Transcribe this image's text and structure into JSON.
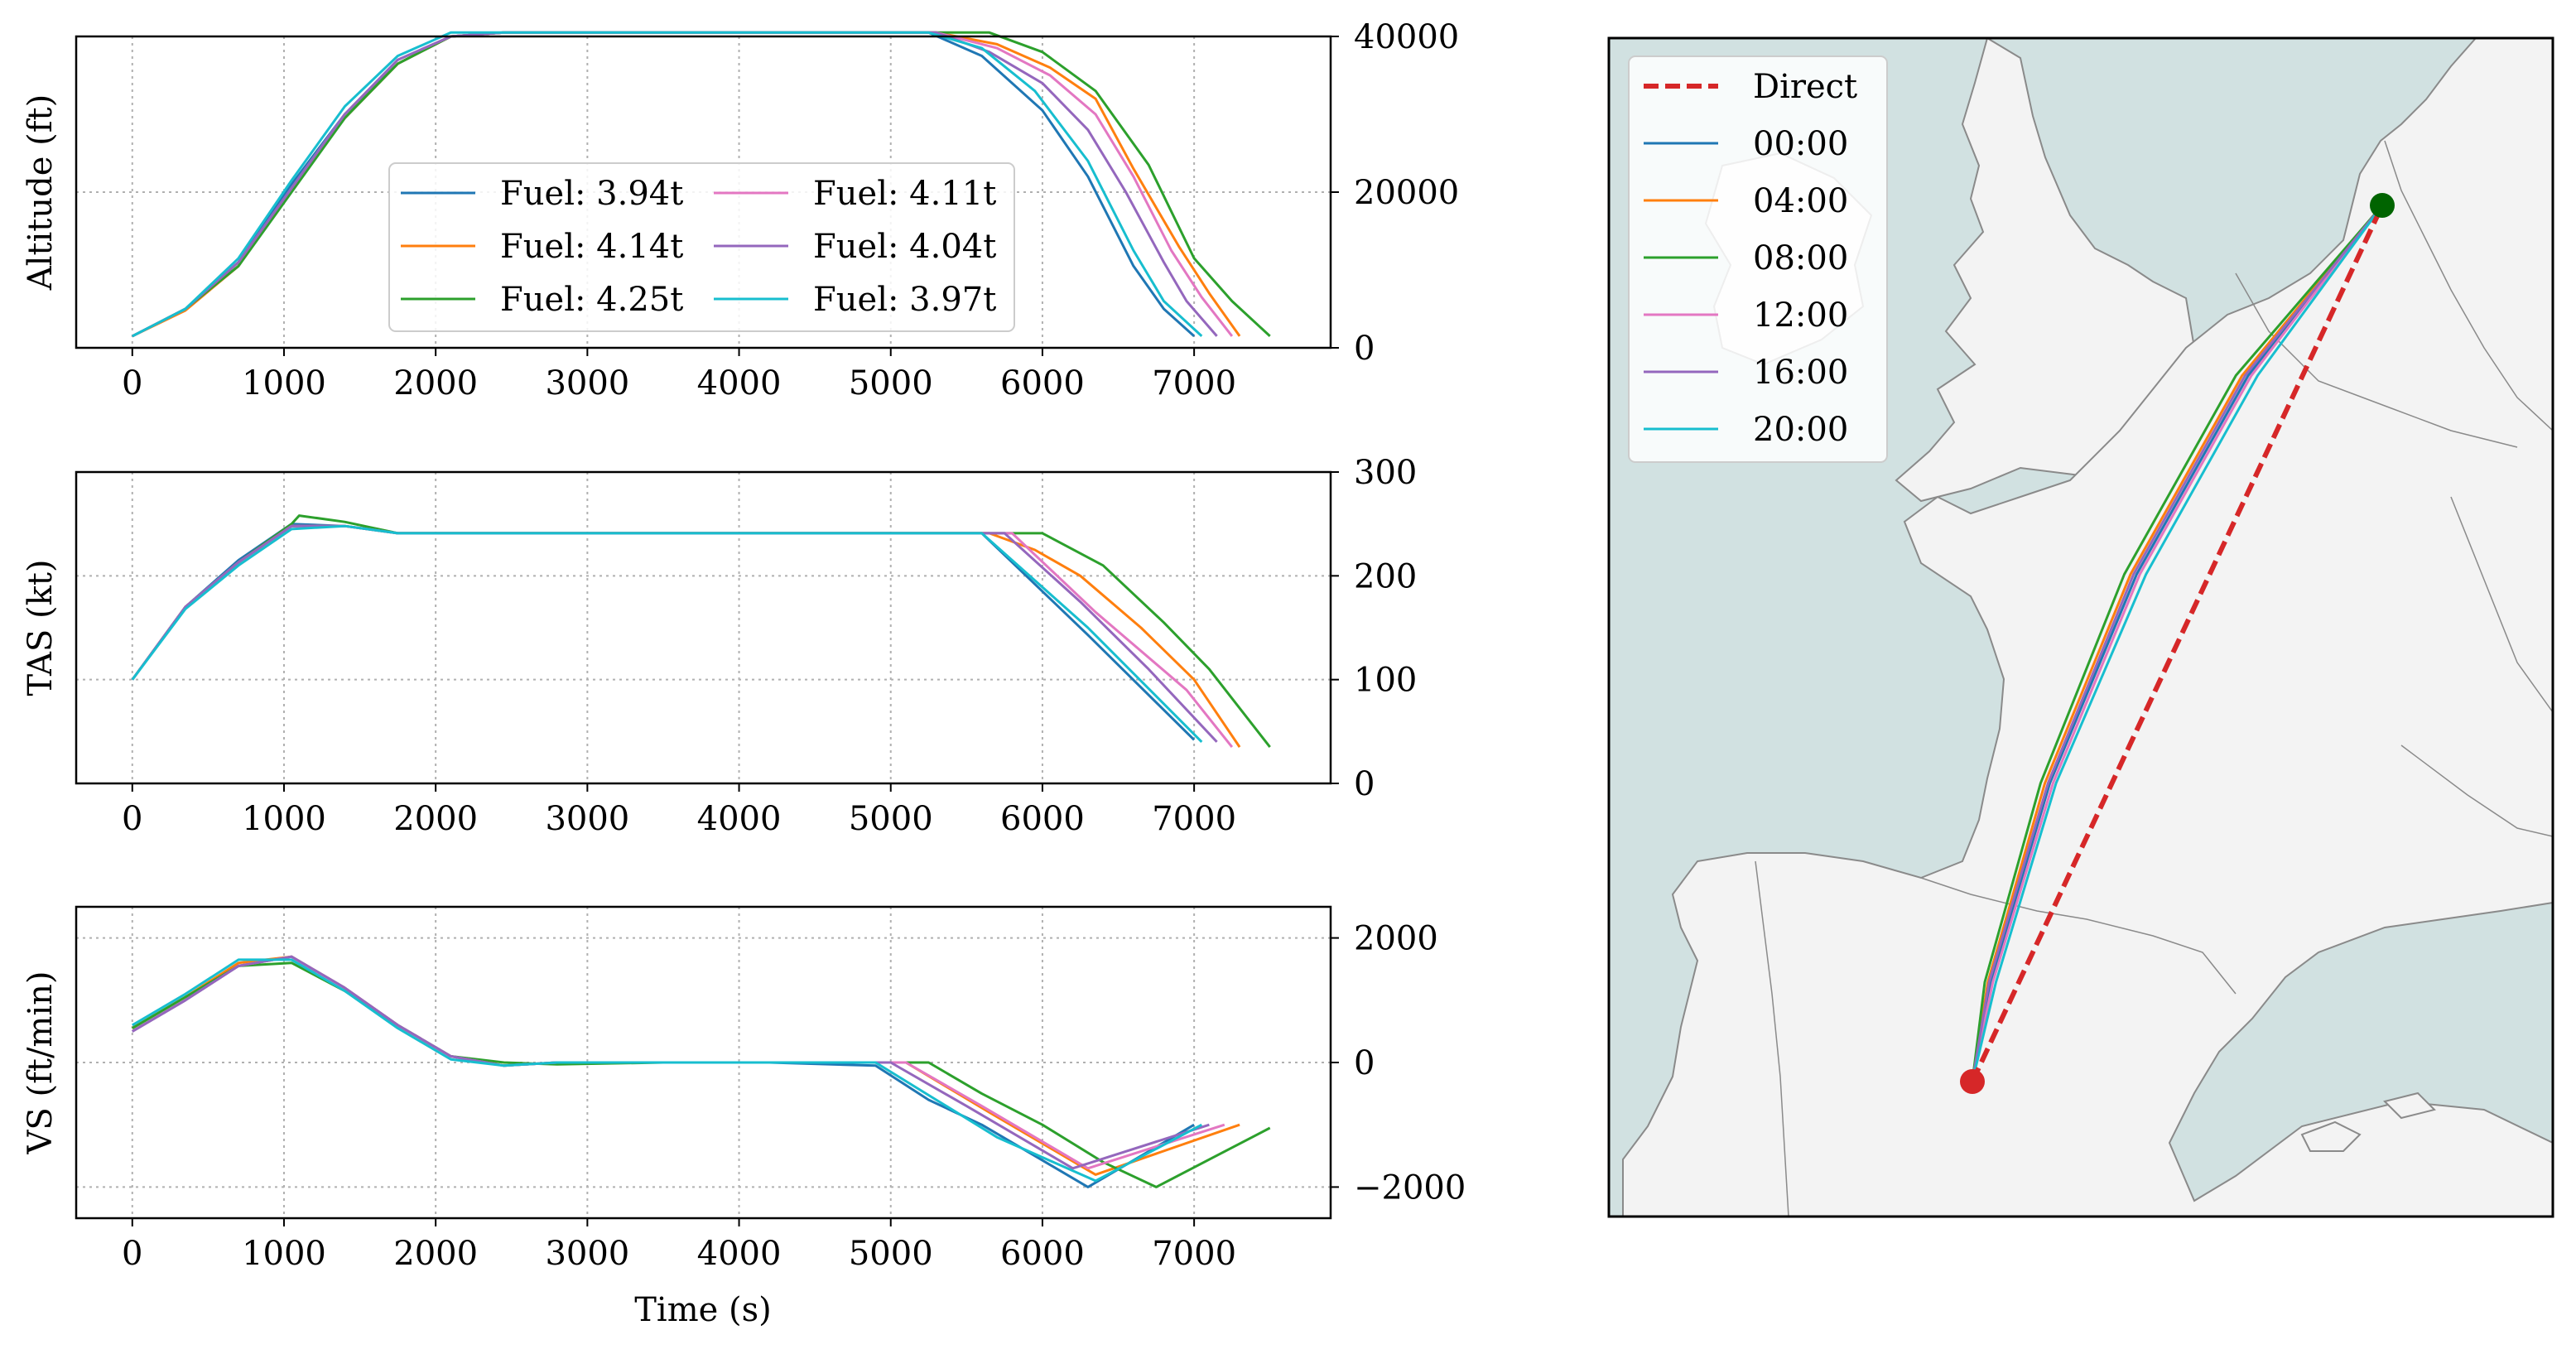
{
  "colors": {
    "c00": "#1f77b4",
    "c04": "#ff7f0e",
    "c08": "#2ca02c",
    "c12": "#e377c2",
    "c16": "#9467bd",
    "c20": "#17becf",
    "direct": "#d62728",
    "sea": "#d1e1e1",
    "land": "#f3f3f3",
    "origin_marker": "#d62728",
    "destination_marker": "#006400"
  },
  "chart_data": [
    {
      "type": "line",
      "id": "altitude",
      "ylabel": "Altitude (ft)",
      "xlabel": "",
      "xlim": [
        -370,
        7900
      ],
      "ylim": [
        0,
        40000
      ],
      "xticks": [
        0,
        1000,
        2000,
        3000,
        4000,
        5000,
        6000,
        7000
      ],
      "yticks": [
        0,
        20000,
        40000
      ],
      "grid": true,
      "legend": {
        "placement": "center",
        "columns": 2,
        "entries": [
          "Fuel: 3.94t",
          "Fuel: 4.14t",
          "Fuel: 4.25t",
          "Fuel: 4.11t",
          "Fuel: 4.04t",
          "Fuel: 3.97t"
        ]
      },
      "series": [
        {
          "name": "Fuel: 3.94t",
          "color_key": "c00",
          "x": [
            0,
            350,
            700,
            1050,
            1400,
            1750,
            2100,
            2450,
            2800,
            3500,
            4200,
            4900,
            5250,
            5600,
            6000,
            6300,
            6600,
            6800,
            7000
          ],
          "y": [
            1500,
            5000,
            11000,
            21000,
            30000,
            36500,
            40000,
            40500,
            40500,
            40500,
            40500,
            40500,
            40500,
            37500,
            30500,
            22000,
            10500,
            5000,
            1500
          ]
        },
        {
          "name": "Fuel: 4.14t",
          "color_key": "c04",
          "x": [
            0,
            350,
            700,
            1050,
            1400,
            1750,
            2100,
            2450,
            2800,
            3500,
            4200,
            4900,
            5300,
            5700,
            6050,
            6350,
            6600,
            6900,
            7100,
            7300
          ],
          "y": [
            1500,
            4800,
            10500,
            20500,
            29500,
            36500,
            40000,
            40500,
            40500,
            40500,
            40500,
            40500,
            40500,
            39000,
            36000,
            32000,
            23000,
            13000,
            7000,
            1500
          ]
        },
        {
          "name": "Fuel: 4.25t",
          "color_key": "c08",
          "x": [
            0,
            350,
            700,
            1050,
            1400,
            1750,
            2100,
            2450,
            2800,
            3500,
            4200,
            4900,
            5300,
            5650,
            6000,
            6350,
            6700,
            7000,
            7250,
            7500
          ],
          "y": [
            1500,
            5000,
            10500,
            20000,
            29500,
            36500,
            40000,
            40500,
            40500,
            40500,
            40500,
            40500,
            40500,
            40500,
            38000,
            33000,
            23500,
            11500,
            6000,
            1500
          ]
        },
        {
          "name": "Fuel: 4.11t",
          "color_key": "c12",
          "x": [
            0,
            350,
            700,
            1050,
            1400,
            1750,
            2100,
            2450,
            2800,
            3500,
            4200,
            4900,
            5300,
            5700,
            6050,
            6350,
            6600,
            6850,
            7050,
            7250
          ],
          "y": [
            1500,
            5000,
            11000,
            20500,
            30000,
            37000,
            40000,
            40500,
            40500,
            40500,
            40500,
            40500,
            40500,
            38500,
            35000,
            30000,
            22000,
            12500,
            6500,
            1500
          ]
        },
        {
          "name": "Fuel: 4.04t",
          "color_key": "c16",
          "x": [
            0,
            350,
            700,
            1050,
            1400,
            1750,
            2100,
            2450,
            2800,
            3500,
            4200,
            4900,
            5300,
            5650,
            6000,
            6300,
            6550,
            6800,
            6950,
            7150
          ],
          "y": [
            1500,
            5000,
            11000,
            20500,
            30000,
            37000,
            40000,
            40500,
            40500,
            40500,
            40500,
            40500,
            40500,
            38000,
            34000,
            28000,
            20000,
            11000,
            6000,
            1500
          ]
        },
        {
          "name": "Fuel: 3.97t",
          "color_key": "c20",
          "x": [
            0,
            350,
            700,
            1050,
            1400,
            1750,
            2100,
            2450,
            2800,
            3500,
            4200,
            4900,
            5250,
            5600,
            5950,
            6300,
            6600,
            6800,
            7050
          ],
          "y": [
            1500,
            5000,
            11500,
            21500,
            31000,
            37500,
            40500,
            40500,
            40500,
            40500,
            40500,
            40500,
            40500,
            38500,
            33000,
            24000,
            12500,
            6000,
            1500
          ]
        }
      ]
    },
    {
      "type": "line",
      "id": "tas",
      "ylabel": "TAS (kt)",
      "xlabel": "",
      "xlim": [
        -370,
        7900
      ],
      "ylim": [
        0,
        300
      ],
      "xticks": [
        0,
        1000,
        2000,
        3000,
        4000,
        5000,
        6000,
        7000
      ],
      "yticks": [
        0,
        100,
        200,
        300
      ],
      "grid": true,
      "series": [
        {
          "name": "00:00",
          "color_key": "c00",
          "x": [
            0,
            350,
            700,
            1050,
            1400,
            1750,
            2100,
            2450,
            2800,
            3500,
            4200,
            4900,
            5600,
            6300,
            7000
          ],
          "y": [
            100,
            170,
            215,
            250,
            248,
            241,
            241,
            241,
            241,
            241,
            241,
            241,
            241,
            143,
            42
          ]
        },
        {
          "name": "04:00",
          "color_key": "c04",
          "x": [
            0,
            350,
            700,
            1050,
            1400,
            1750,
            2100,
            2450,
            2800,
            3500,
            4200,
            4900,
            5650,
            5950,
            6250,
            6650,
            7000,
            7300
          ],
          "y": [
            100,
            170,
            213,
            248,
            248,
            241,
            241,
            241,
            241,
            241,
            241,
            241,
            241,
            225,
            200,
            150,
            100,
            35
          ]
        },
        {
          "name": "08:00",
          "color_key": "c08",
          "x": [
            0,
            350,
            700,
            1050,
            1100,
            1400,
            1750,
            2100,
            2450,
            2800,
            3500,
            4200,
            4900,
            5600,
            6000,
            6400,
            6800,
            7100,
            7500
          ],
          "y": [
            100,
            170,
            213,
            250,
            258,
            252,
            241,
            241,
            241,
            241,
            241,
            241,
            241,
            241,
            241,
            210,
            155,
            110,
            35
          ]
        },
        {
          "name": "12:00",
          "color_key": "c12",
          "x": [
            0,
            350,
            700,
            1050,
            1400,
            1750,
            2100,
            2450,
            2800,
            3500,
            4200,
            4900,
            5800,
            6350,
            6950,
            7250
          ],
          "y": [
            100,
            170,
            213,
            248,
            248,
            241,
            241,
            241,
            241,
            241,
            241,
            241,
            241,
            165,
            90,
            35
          ]
        },
        {
          "name": "16:00",
          "color_key": "c16",
          "x": [
            0,
            350,
            700,
            1050,
            1400,
            1750,
            2100,
            2450,
            2800,
            3500,
            4200,
            4900,
            5750,
            6250,
            6700,
            7150
          ],
          "y": [
            100,
            170,
            213,
            248,
            248,
            241,
            241,
            241,
            241,
            241,
            241,
            241,
            241,
            175,
            110,
            40
          ]
        },
        {
          "name": "20:00",
          "color_key": "c20",
          "x": [
            0,
            350,
            700,
            1050,
            1400,
            1750,
            2100,
            2450,
            2800,
            3500,
            4200,
            4900,
            5600,
            6300,
            7050
          ],
          "y": [
            100,
            168,
            210,
            245,
            248,
            241,
            241,
            241,
            241,
            241,
            241,
            241,
            241,
            150,
            40
          ]
        }
      ]
    },
    {
      "type": "line",
      "id": "vs",
      "ylabel": "VS (ft/min)",
      "xlabel": "Time (s)",
      "xlim": [
        -370,
        7900
      ],
      "ylim": [
        -2500,
        2500
      ],
      "xticks": [
        0,
        1000,
        2000,
        3000,
        4000,
        5000,
        6000,
        7000
      ],
      "yticks": [
        -2000,
        0,
        2000
      ],
      "grid": true,
      "series": [
        {
          "name": "00:00",
          "color_key": "c00",
          "x": [
            0,
            350,
            700,
            1050,
            1400,
            1750,
            2100,
            2450,
            2800,
            3500,
            4200,
            4900,
            5250,
            5600,
            6300,
            7000
          ],
          "y": [
            500,
            1000,
            1550,
            1700,
            1200,
            600,
            100,
            -50,
            0,
            0,
            0,
            -50,
            -600,
            -1000,
            -2000,
            -1000
          ]
        },
        {
          "name": "04:00",
          "color_key": "c04",
          "x": [
            0,
            350,
            700,
            1050,
            1400,
            1750,
            2100,
            2450,
            2800,
            3500,
            4200,
            4900,
            5100,
            5650,
            6350,
            7300
          ],
          "y": [
            550,
            1050,
            1600,
            1700,
            1200,
            600,
            100,
            -50,
            0,
            0,
            0,
            0,
            0,
            -800,
            -1800,
            -1000
          ]
        },
        {
          "name": "08:00",
          "color_key": "c08",
          "x": [
            0,
            350,
            700,
            1050,
            1400,
            1750,
            2100,
            2450,
            2800,
            3500,
            4200,
            4900,
            5250,
            5600,
            6000,
            6400,
            6750,
            7500
          ],
          "y": [
            550,
            1050,
            1550,
            1600,
            1150,
            600,
            100,
            0,
            -30,
            0,
            0,
            0,
            0,
            -500,
            -1000,
            -1600,
            -2000,
            -1050
          ]
        },
        {
          "name": "12:00",
          "color_key": "c12",
          "x": [
            0,
            350,
            700,
            1050,
            1400,
            1750,
            2100,
            2450,
            2800,
            3500,
            4200,
            4900,
            5100,
            5600,
            6300,
            7200
          ],
          "y": [
            500,
            1000,
            1550,
            1700,
            1200,
            600,
            100,
            -50,
            0,
            0,
            0,
            0,
            0,
            -700,
            -1700,
            -1000
          ]
        },
        {
          "name": "16:00",
          "color_key": "c16",
          "x": [
            0,
            350,
            700,
            1050,
            1400,
            1750,
            2100,
            2450,
            2800,
            3500,
            4200,
            4900,
            5000,
            5500,
            6200,
            7100
          ],
          "y": [
            500,
            1000,
            1550,
            1700,
            1200,
            600,
            100,
            -50,
            0,
            0,
            0,
            0,
            0,
            -700,
            -1700,
            -1000
          ]
        },
        {
          "name": "20:00",
          "color_key": "c20",
          "x": [
            0,
            350,
            700,
            1050,
            1400,
            1750,
            2100,
            2450,
            2800,
            3500,
            4200,
            4900,
            5300,
            5700,
            6350,
            7050
          ],
          "y": [
            600,
            1100,
            1650,
            1650,
            1150,
            550,
            50,
            -50,
            0,
            0,
            0,
            0,
            -600,
            -1200,
            -1900,
            -1000
          ]
        }
      ]
    },
    {
      "type": "map",
      "id": "route-map",
      "legend": {
        "placement": "top-left",
        "entries": [
          "Direct",
          "00:00",
          "04:00",
          "08:00",
          "12:00",
          "16:00",
          "20:00"
        ]
      },
      "origin": {
        "name": "origin",
        "lon": -1.85,
        "lat": 43.5
      },
      "destination": {
        "name": "destination",
        "lon": 4.76,
        "lat": 52.31
      },
      "map_extent": {
        "lon": [
          -5,
          8.5
        ],
        "lat": [
          41.5,
          53.5
        ]
      },
      "routes": [
        {
          "name": "Direct",
          "color_key": "direct",
          "style": "dashed",
          "lon": [
            -1.85,
            4.76
          ],
          "lat": [
            43.5,
            52.31
          ]
        },
        {
          "name": "00:00",
          "color_key": "c00",
          "lon": [
            -1.85,
            -1.55,
            -0.6,
            0.8,
            2.6,
            4.76
          ],
          "lat": [
            43.5,
            44.5,
            46.5,
            48.6,
            50.6,
            52.31
          ]
        },
        {
          "name": "04:00",
          "color_key": "c04",
          "lon": [
            -1.85,
            -1.6,
            -0.68,
            0.7,
            2.5,
            4.76
          ],
          "lat": [
            43.5,
            44.5,
            46.5,
            48.6,
            50.6,
            52.31
          ]
        },
        {
          "name": "08:00",
          "color_key": "c08",
          "lon": [
            -1.85,
            -1.65,
            -0.75,
            0.6,
            2.4,
            4.76
          ],
          "lat": [
            43.5,
            44.5,
            46.5,
            48.6,
            50.6,
            52.31
          ]
        },
        {
          "name": "12:00",
          "color_key": "c12",
          "lon": [
            -1.85,
            -1.52,
            -0.55,
            0.85,
            2.65,
            4.76
          ],
          "lat": [
            43.5,
            44.5,
            46.5,
            48.6,
            50.6,
            52.31
          ]
        },
        {
          "name": "16:00",
          "color_key": "c16",
          "lon": [
            -1.85,
            -1.58,
            -0.63,
            0.75,
            2.55,
            4.76
          ],
          "lat": [
            43.5,
            44.5,
            46.5,
            48.6,
            50.6,
            52.31
          ]
        },
        {
          "name": "20:00",
          "color_key": "c20",
          "lon": [
            -1.85,
            -1.47,
            -0.5,
            0.95,
            2.75,
            4.76
          ],
          "lat": [
            43.5,
            44.5,
            46.5,
            48.6,
            50.6,
            52.31
          ]
        }
      ]
    }
  ]
}
